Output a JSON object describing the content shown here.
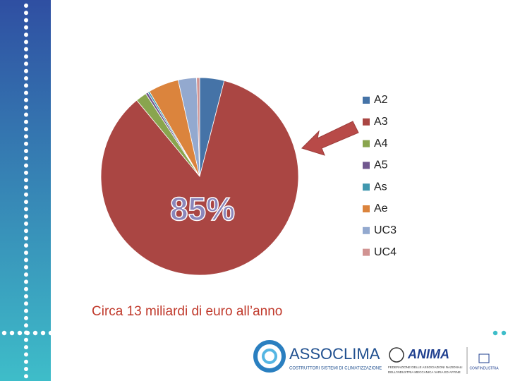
{
  "chart_data": {
    "type": "pie",
    "categories": [
      "A2",
      "A3",
      "A4",
      "A5",
      "As",
      "Ae",
      "UC3",
      "UC4"
    ],
    "values": [
      4,
      85,
      1.8,
      0.4,
      0.3,
      5,
      3,
      0.5
    ],
    "value_labels": [
      null,
      "85%",
      null,
      null,
      null,
      null,
      null,
      null
    ],
    "colors": [
      "#4573a7",
      "#aa4643",
      "#89a54e",
      "#71588f",
      "#4198af",
      "#db843d",
      "#93a9cf",
      "#d19392"
    ],
    "caption": "Circa 13 miliardi di euro all’anno",
    "legend": "right"
  },
  "footer": {
    "assoclima": "ASSOCLIMA",
    "assoclima_tagline": "COSTRUTTORI SISTEMI DI CLIMATIZZAZIONE",
    "anima": "ANIMA",
    "anima_tagline_1": "FEDERAZIONE DELLE ASSOCIAZIONI NAZIONALI",
    "anima_tagline_2": "DELL'INDUSTRIA MECCANICA VARIA ED AFFINE",
    "confindustria": "CONFINDUSTRIA"
  }
}
